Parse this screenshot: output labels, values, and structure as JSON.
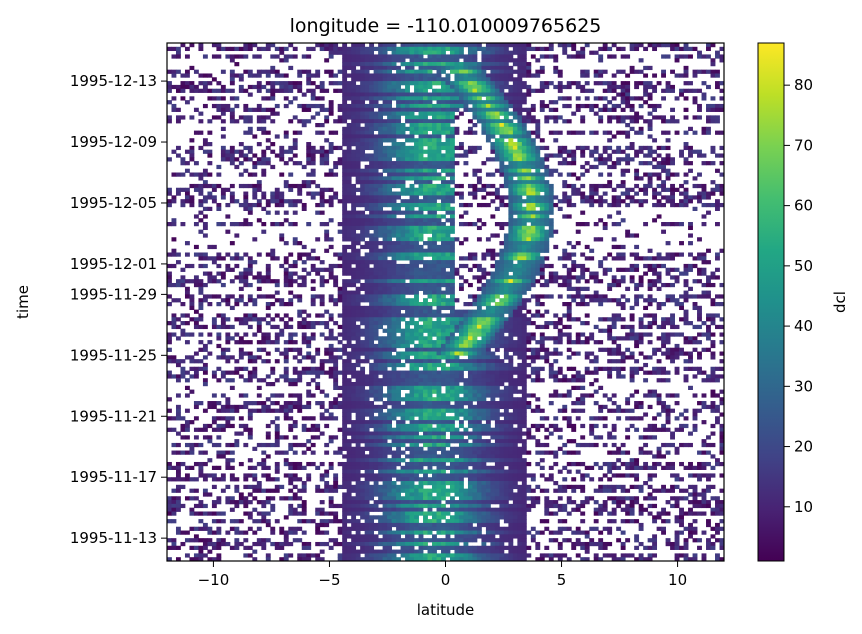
{
  "chart_data": {
    "type": "heatmap",
    "title": "longitude = -110.010009765625",
    "xlabel": "latitude",
    "ylabel": "time",
    "xlim": [
      -12,
      12
    ],
    "ylim": [
      "1995-11-11T12:00",
      "1995-12-15T12:00"
    ],
    "x_ticks": [
      {
        "value": -10,
        "label": "−10"
      },
      {
        "value": -5,
        "label": "−5"
      },
      {
        "value": 0,
        "label": "0"
      },
      {
        "value": 5,
        "label": "5"
      },
      {
        "value": 10,
        "label": "10"
      }
    ],
    "y_ticks": [
      {
        "value": "1995-11-13",
        "label": "1995-11-13"
      },
      {
        "value": "1995-11-17",
        "label": "1995-11-17"
      },
      {
        "value": "1995-11-21",
        "label": "1995-11-21"
      },
      {
        "value": "1995-11-25",
        "label": "1995-11-25"
      },
      {
        "value": "1995-11-29",
        "label": "1995-11-29"
      },
      {
        "value": "1995-12-01",
        "label": "1995-12-01"
      },
      {
        "value": "1995-12-05",
        "label": "1995-12-05"
      },
      {
        "value": "1995-12-09",
        "label": "1995-12-09"
      },
      {
        "value": "1995-12-13",
        "label": "1995-12-13"
      }
    ],
    "colorbar": {
      "label": "dcl",
      "colormap": "viridis",
      "range": [
        1,
        87
      ],
      "ticks": [
        10,
        20,
        30,
        40,
        50,
        60,
        70,
        80
      ]
    },
    "missing_values": "white (NaN)",
    "features": [
      {
        "name": "equatorial band",
        "lat_center": -0.5,
        "lat_halfwidth": 4.0,
        "peak_dcl": 50
      },
      {
        "name": "curved shallow-thermocline arc",
        "lat_range": [
          -0.5,
          4.5
        ],
        "time_range": [
          "1995-11-26",
          "1995-12-13"
        ],
        "peak_dcl": 85
      },
      {
        "name": "background scatter",
        "typical_dcl": [
          1,
          20
        ]
      }
    ]
  }
}
